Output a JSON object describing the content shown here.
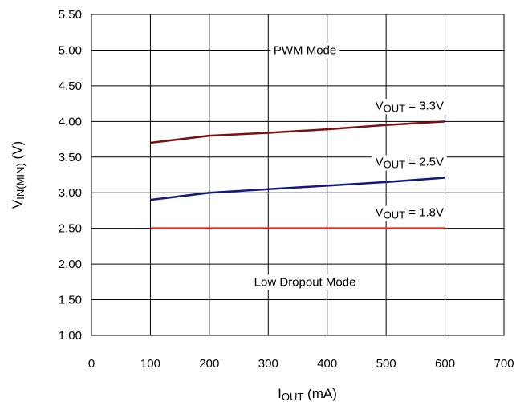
{
  "chart_data": {
    "type": "line",
    "x": [
      100,
      200,
      300,
      400,
      500,
      600
    ],
    "series": [
      {
        "name": "3.3V",
        "label_main": "V",
        "label_sub": "OUT",
        "label_tail": " = 3.3V",
        "color": "#7b1010",
        "values": [
          3.7,
          3.8,
          3.84,
          3.89,
          3.95,
          4.0
        ]
      },
      {
        "name": "2.5V",
        "label_main": "V",
        "label_sub": "OUT",
        "label_tail": " = 2.5V",
        "color": "#101a7b",
        "values": [
          2.9,
          3.0,
          3.05,
          3.1,
          3.15,
          3.21
        ]
      },
      {
        "name": "1.8V",
        "label_main": "V",
        "label_sub": "OUT",
        "label_tail": " = 1.8V",
        "color": "#e8231e",
        "values": [
          2.5,
          2.5,
          2.5,
          2.5,
          2.5,
          2.5
        ]
      }
    ],
    "xlim": [
      0,
      700
    ],
    "ylim": [
      1.0,
      5.5
    ],
    "xticks": [
      "0",
      "100",
      "200",
      "300",
      "400",
      "500",
      "600",
      "700"
    ],
    "yticks": [
      "1.00",
      "1.50",
      "2.00",
      "2.50",
      "3.00",
      "3.50",
      "4.00",
      "4.50",
      "5.00",
      "5.50"
    ],
    "xlabel": {
      "main": "I",
      "sub": "OUT",
      "tail": " (mA)"
    },
    "ylabel": {
      "main": "V",
      "sub": "IN(MIN)",
      "tail": " (V)"
    },
    "annotations": [
      {
        "text": "PWM Mode",
        "x": 410,
        "y": 5.0
      },
      {
        "text": "Low Dropout Mode",
        "x": 410,
        "y": 1.75
      }
    ],
    "grid": true
  }
}
